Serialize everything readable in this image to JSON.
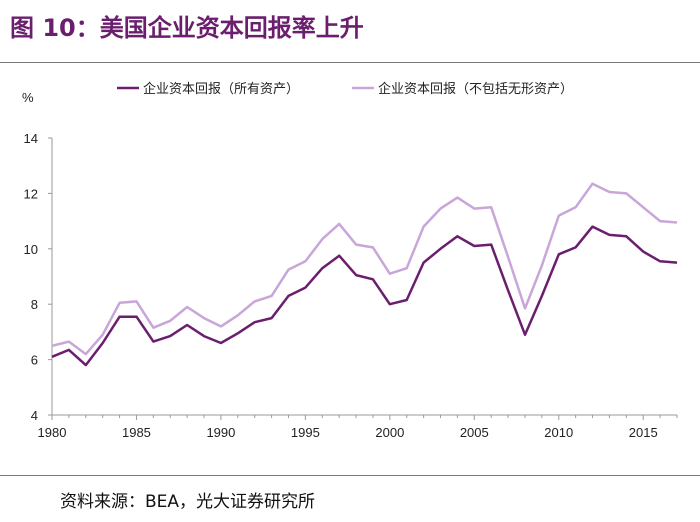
{
  "page": {
    "title": "图 10：美国企业资本回报率上升",
    "source": "资料来源：BEA，光大证券研究所"
  },
  "colors": {
    "series1": "#6B1E6E",
    "series2": "#C9A6D9",
    "title": "#6B1E6E"
  },
  "chart_data": {
    "type": "line",
    "title": "",
    "xlabel": "",
    "ylabel": "%",
    "xlim": [
      1980,
      2017
    ],
    "ylim": [
      4,
      14
    ],
    "xticks": [
      1980,
      1985,
      1990,
      1995,
      2000,
      2005,
      2010,
      2015
    ],
    "yticks": [
      4,
      6,
      8,
      10,
      12,
      14
    ],
    "grid": false,
    "legend_position": "top",
    "x": [
      1980,
      1981,
      1982,
      1983,
      1984,
      1985,
      1986,
      1987,
      1988,
      1989,
      1990,
      1991,
      1992,
      1993,
      1994,
      1995,
      1996,
      1997,
      1998,
      1999,
      2000,
      2001,
      2002,
      2003,
      2004,
      2005,
      2006,
      2007,
      2008,
      2009,
      2010,
      2011,
      2012,
      2013,
      2014,
      2015,
      2016,
      2017
    ],
    "series": [
      {
        "name": "企业资本回报（所有资产）",
        "values": [
          6.1,
          6.35,
          5.8,
          6.6,
          7.55,
          7.55,
          6.65,
          6.85,
          7.25,
          6.85,
          6.6,
          6.95,
          7.35,
          7.5,
          8.3,
          8.6,
          9.3,
          9.75,
          9.05,
          8.9,
          8.0,
          8.15,
          9.5,
          10.0,
          10.45,
          10.1,
          10.15,
          8.5,
          6.9,
          8.3,
          9.8,
          10.05,
          10.8,
          10.5,
          10.45,
          9.9,
          9.55,
          9.5
        ]
      },
      {
        "name": "企业资本回报（不包括无形资产）",
        "values": [
          6.5,
          6.65,
          6.2,
          6.9,
          8.05,
          8.1,
          7.15,
          7.4,
          7.9,
          7.5,
          7.2,
          7.6,
          8.1,
          8.3,
          9.25,
          9.55,
          10.35,
          10.9,
          10.15,
          10.05,
          9.1,
          9.3,
          10.8,
          11.45,
          11.85,
          11.45,
          11.5,
          9.7,
          7.85,
          9.4,
          11.2,
          11.5,
          12.35,
          12.05,
          12.0,
          11.5,
          11.0,
          10.95
        ]
      }
    ]
  }
}
